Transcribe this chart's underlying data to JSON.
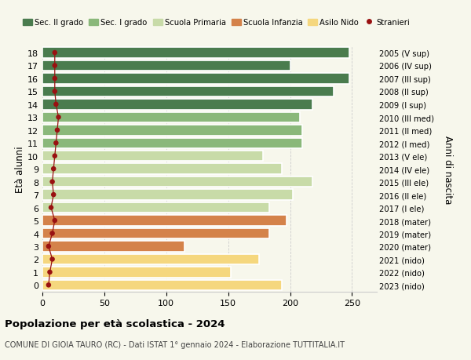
{
  "ages": [
    0,
    1,
    2,
    3,
    4,
    5,
    6,
    7,
    8,
    9,
    10,
    11,
    12,
    13,
    14,
    15,
    16,
    17,
    18
  ],
  "right_labels": [
    "2023 (nido)",
    "2022 (nido)",
    "2021 (nido)",
    "2020 (mater)",
    "2019 (mater)",
    "2018 (mater)",
    "2017 (I ele)",
    "2016 (II ele)",
    "2015 (III ele)",
    "2014 (IV ele)",
    "2013 (V ele)",
    "2012 (I med)",
    "2011 (II med)",
    "2010 (III med)",
    "2009 (I sup)",
    "2008 (II sup)",
    "2007 (III sup)",
    "2006 (IV sup)",
    "2005 (V sup)"
  ],
  "bar_values": [
    193,
    152,
    175,
    115,
    183,
    197,
    183,
    202,
    218,
    193,
    178,
    210,
    210,
    208,
    218,
    235,
    248,
    200,
    248
  ],
  "stranieri": [
    5,
    6,
    8,
    5,
    8,
    10,
    7,
    9,
    8,
    9,
    10,
    11,
    12,
    13,
    11,
    10,
    10,
    10,
    10
  ],
  "bar_colors": [
    "#f5d77e",
    "#f5d77e",
    "#f5d77e",
    "#d4824a",
    "#d4824a",
    "#d4824a",
    "#c8dba8",
    "#c8dba8",
    "#c8dba8",
    "#c8dba8",
    "#c8dba8",
    "#8ab87a",
    "#8ab87a",
    "#8ab87a",
    "#4a7c4e",
    "#4a7c4e",
    "#4a7c4e",
    "#4a7c4e",
    "#4a7c4e"
  ],
  "legend_labels": [
    "Sec. II grado",
    "Sec. I grado",
    "Scuola Primaria",
    "Scuola Infanzia",
    "Asilo Nido",
    "Stranieri"
  ],
  "legend_colors": [
    "#4a7c4e",
    "#8ab87a",
    "#c8dba8",
    "#d4824a",
    "#f5d77e",
    "#aa1111"
  ],
  "title": "Popolazione per età scolastica - 2024",
  "subtitle": "COMUNE DI GIOIA TAURO (RC) - Dati ISTAT 1° gennaio 2024 - Elaborazione TUTTITALIA.IT",
  "ylabel": "Età alunni",
  "ylabel2": "Anni di nascita",
  "xlim": [
    0,
    270
  ],
  "xticks": [
    0,
    50,
    100,
    150,
    200,
    250
  ],
  "bg_color": "#f7f7ec",
  "bar_height": 0.82,
  "stranieri_color": "#991111",
  "stranieri_dot_size": 22,
  "grid_color": "#cccccc",
  "white_sep": "white"
}
